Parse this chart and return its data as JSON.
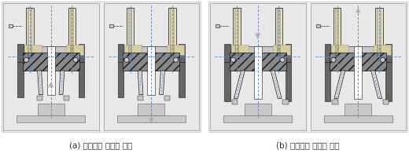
{
  "figsize": [
    5.2,
    2.09
  ],
  "dpi": 100,
  "background_color": "#ffffff",
  "caption_a": "(a) 처분용기 스트링 체결",
  "caption_b": "(b) 처분용기 스트링 해제",
  "caption_fontsize": 7.5,
  "caption_color": "#333333",
  "panel_bg": "#e8e8e8",
  "border_color": "#666666",
  "dark_gray": "#666666",
  "hatch_gray": "#888888",
  "mid_gray": "#999999",
  "light_gray": "#c8c8c8",
  "very_light_gray": "#e0e0e0",
  "blue_dash": "#6688bb",
  "beige": "#d8cca0",
  "beige_light": "#e8dfc0",
  "white": "#ffffff",
  "dark": "#333333",
  "black": "#111111"
}
